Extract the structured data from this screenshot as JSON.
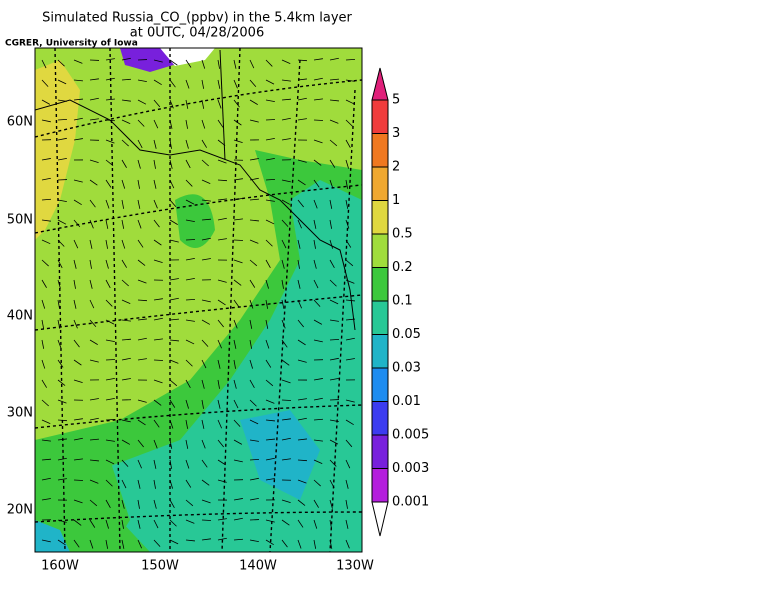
{
  "title": "Simulated Russia_CO_(ppbv) in the 5.4km layer",
  "subtitle": "at 0UTC, 04/28/2006",
  "credit": "CGRER, University of Iowa",
  "lat_labels": [
    "60N",
    "50N",
    "40N",
    "30N",
    "20N"
  ],
  "lon_labels": [
    "160W",
    "150W",
    "140W",
    "130W"
  ],
  "colorbar": {
    "levels": [
      5,
      3,
      2,
      1,
      0.5,
      0.2,
      0.1,
      0.05,
      0.03,
      0.01,
      0.005,
      0.003,
      0.001
    ],
    "colors": [
      "#e0207a",
      "#f03c3c",
      "#f07820",
      "#f0a830",
      "#e0d840",
      "#a0dc3c",
      "#3cc83c",
      "#28c896",
      "#20b4c8",
      "#1e8cf0",
      "#3c3cf0",
      "#7820dc",
      "#b41edc",
      "#ffffff"
    ]
  }
}
